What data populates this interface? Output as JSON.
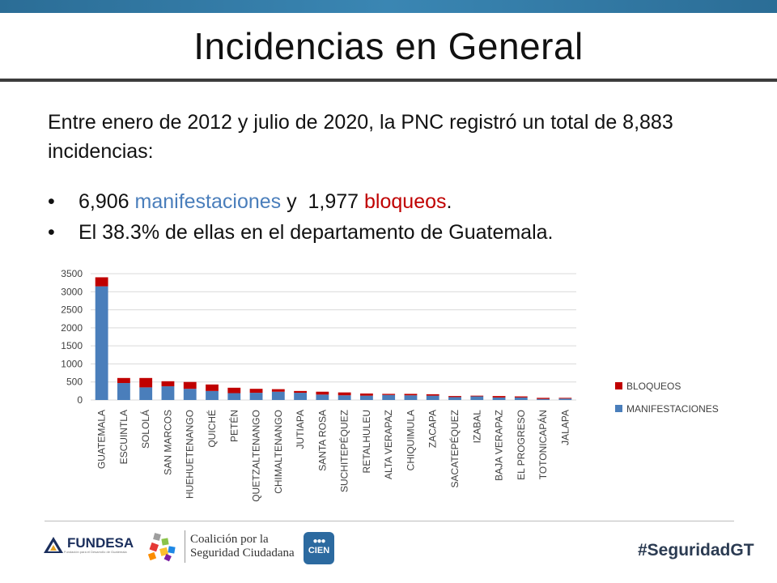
{
  "slide": {
    "title": "Incidencias en General",
    "intro": "Entre enero de 2012 y julio de 2020, la PNC registró un total de 8,883 incidencias:",
    "bullet1": {
      "marker": "•",
      "n1": "6,906 ",
      "w1": "manifestaciones",
      "mid": " y  1,977 ",
      "w2": "bloqueos",
      "end": "."
    },
    "bullet2": {
      "marker": "•",
      "text": "El 38.3% de ellas en el departamento de Guatemala."
    }
  },
  "footer": {
    "fundesa": "FUNDESA",
    "fundesa_sub": "Fundación para el Desarrollo de Guatemala",
    "coalicion_line1": "Coalición por la",
    "coalicion_line2": "Seguridad Ciudadana",
    "cien": "CIEN",
    "hashtag": "#SeguridadGT"
  },
  "colors": {
    "manifestaciones": "#4a7ebb",
    "bloqueos": "#c00000",
    "grid": "#d9d9d9"
  },
  "chart_data": {
    "type": "bar",
    "stacked": true,
    "categories": [
      "GUATEMALA",
      "ESCUINTLA",
      "SOLOLÁ",
      "SAN MARCOS",
      "HUEHUETENANGO",
      "QUICHÉ",
      "PETÉN",
      "QUETZALTENANGO",
      "CHIMALTENANGO",
      "JUTIAPA",
      "SANTA ROSA",
      "SUCHITEPÉQUEZ",
      "RETALHULEU",
      "ALTA VERAPAZ",
      "CHIQUIMULA",
      "ZACAPA",
      "SACATEPÉQUEZ",
      "IZABAL",
      "BAJA VERAPAZ",
      "EL PROGRESO",
      "TOTONICAPÁN",
      "JALAPA"
    ],
    "series": [
      {
        "name": "MANIFESTACIONES",
        "values": [
          3150,
          470,
          350,
          380,
          310,
          250,
          190,
          200,
          230,
          200,
          150,
          130,
          120,
          140,
          130,
          120,
          80,
          100,
          70,
          70,
          30,
          40
        ]
      },
      {
        "name": "BLOQUEOS",
        "values": [
          250,
          140,
          260,
          140,
          190,
          180,
          150,
          110,
          70,
          50,
          80,
          80,
          60,
          30,
          40,
          40,
          30,
          20,
          40,
          30,
          30,
          20
        ]
      }
    ],
    "ylim": [
      0,
      3500
    ],
    "yticks": [
      0,
      500,
      1000,
      1500,
      2000,
      2500,
      3000,
      3500
    ],
    "legend": "right",
    "xlabel": "",
    "ylabel": ""
  }
}
